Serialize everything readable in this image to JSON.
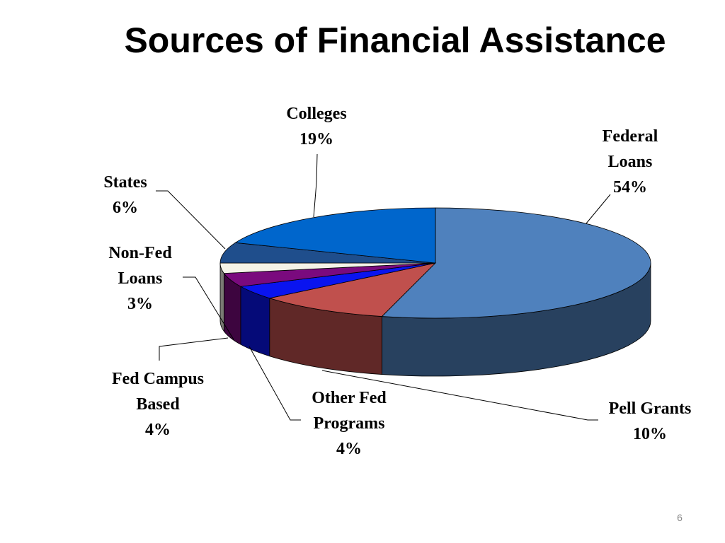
{
  "chart_data": {
    "type": "pie3d",
    "title": "Sources of Financial Assistance",
    "categories": [
      "Federal Loans",
      "Pell Grants",
      "Other Fed Programs",
      "Fed Campus Based",
      "Non-Fed Loans",
      "States",
      "Colleges"
    ],
    "values": [
      54,
      10,
      4,
      4,
      3,
      6,
      19
    ],
    "value_labels": [
      "54%",
      "10%",
      "4%",
      "4%",
      "3%",
      "6%",
      "19%"
    ],
    "colors": [
      "#4f81bd",
      "#c0504d",
      "#0a14f0",
      "#7a0a7e",
      "#f4f3e8",
      "#1f4e8c",
      "#0066cc"
    ]
  },
  "slide_number": "6"
}
